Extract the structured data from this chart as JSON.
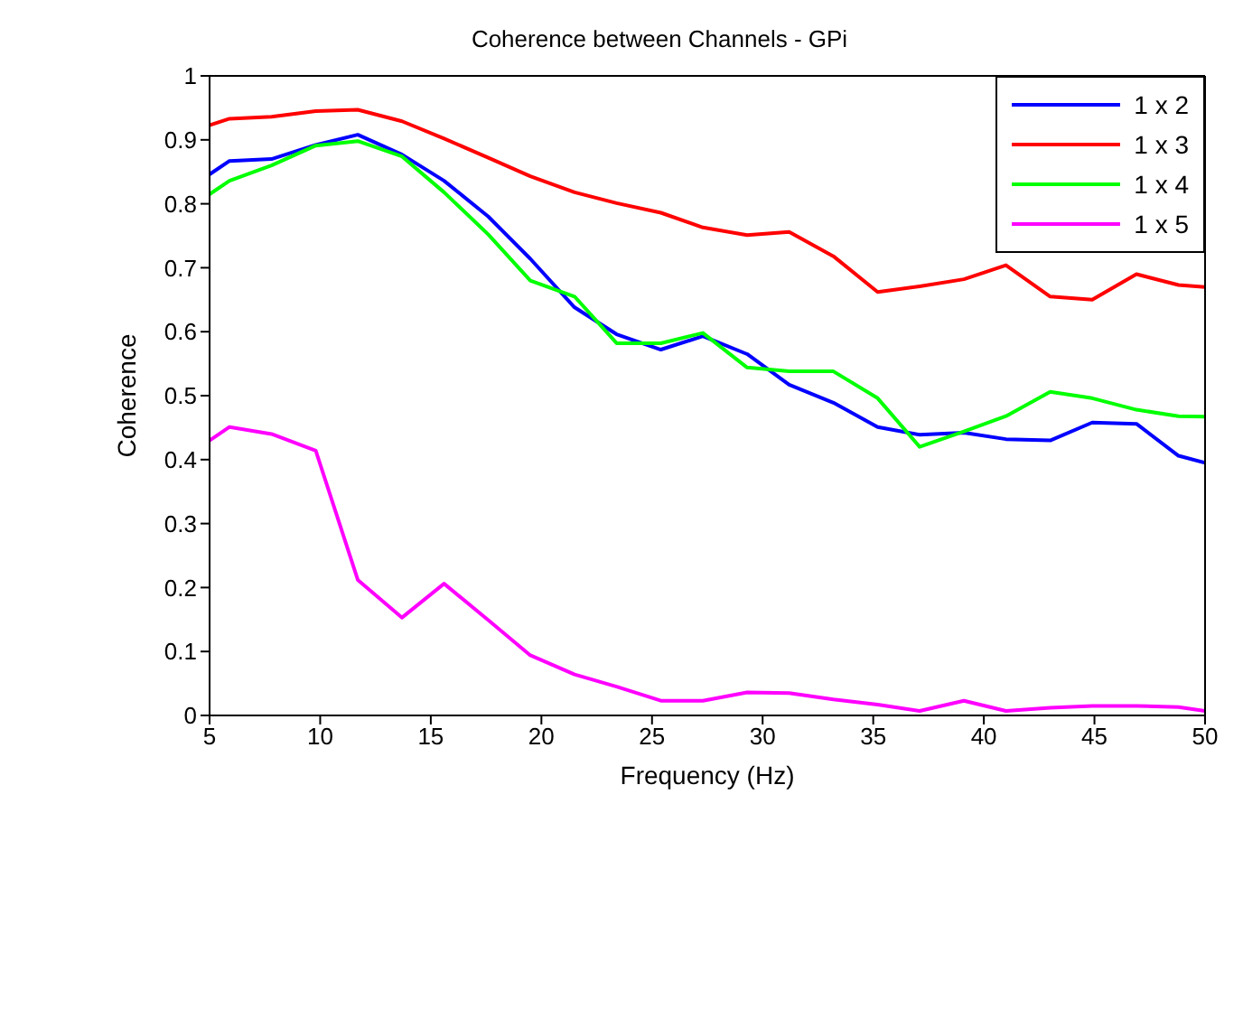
{
  "chart_data": {
    "type": "line",
    "title": "Coherence between Channels - GPi",
    "xlabel": "Frequency (Hz)",
    "ylabel": "Coherence",
    "x": [
      5,
      5.9,
      7.8,
      9.8,
      11.7,
      13.7,
      15.6,
      17.6,
      19.5,
      21.5,
      23.4,
      25.4,
      27.3,
      29.3,
      31.2,
      33.2,
      35.2,
      37.1,
      39.1,
      41.0,
      43.0,
      44.9,
      46.9,
      48.8,
      50
    ],
    "series": [
      {
        "name": "1 x 2",
        "color": "#0000ff",
        "values": [
          0.846,
          0.867,
          0.87,
          0.892,
          0.908,
          0.877,
          0.836,
          0.78,
          0.714,
          0.638,
          0.596,
          0.572,
          0.593,
          0.565,
          0.517,
          0.489,
          0.451,
          0.439,
          0.442,
          0.432,
          0.43,
          0.458,
          0.456,
          0.406,
          0.395
        ]
      },
      {
        "name": "1 x 3",
        "color": "#ff0000",
        "values": [
          0.923,
          0.933,
          0.936,
          0.945,
          0.947,
          0.929,
          0.902,
          0.872,
          0.843,
          0.818,
          0.801,
          0.786,
          0.763,
          0.751,
          0.756,
          0.718,
          0.662,
          0.671,
          0.682,
          0.704,
          0.655,
          0.65,
          0.69,
          0.673,
          0.67
        ]
      },
      {
        "name": "1 x 4",
        "color": "#00ff00",
        "values": [
          0.815,
          0.836,
          0.86,
          0.891,
          0.898,
          0.874,
          0.818,
          0.752,
          0.68,
          0.655,
          0.582,
          0.582,
          0.598,
          0.544,
          0.538,
          0.538,
          0.496,
          0.42,
          0.444,
          0.468,
          0.506,
          0.496,
          0.478,
          0.468,
          0.467
        ]
      },
      {
        "name": "1 x 5",
        "color": "#ff00ff",
        "values": [
          0.43,
          0.451,
          0.44,
          0.414,
          0.212,
          0.153,
          0.206,
          0.149,
          0.094,
          0.064,
          0.045,
          0.023,
          0.023,
          0.036,
          0.035,
          0.025,
          0.017,
          0.007,
          0.023,
          0.007,
          0.012,
          0.015,
          0.015,
          0.013,
          0.007
        ]
      }
    ],
    "xlim": [
      5,
      50
    ],
    "xticks": [
      5,
      10,
      15,
      20,
      25,
      30,
      35,
      40,
      45,
      50
    ],
    "ylim": [
      0,
      1
    ],
    "yticks": [
      0,
      0.1,
      0.2,
      0.3,
      0.4,
      0.5,
      0.6,
      0.7,
      0.8,
      0.9,
      1
    ],
    "legend": "top right",
    "marker": "none",
    "line_style": "solid"
  }
}
